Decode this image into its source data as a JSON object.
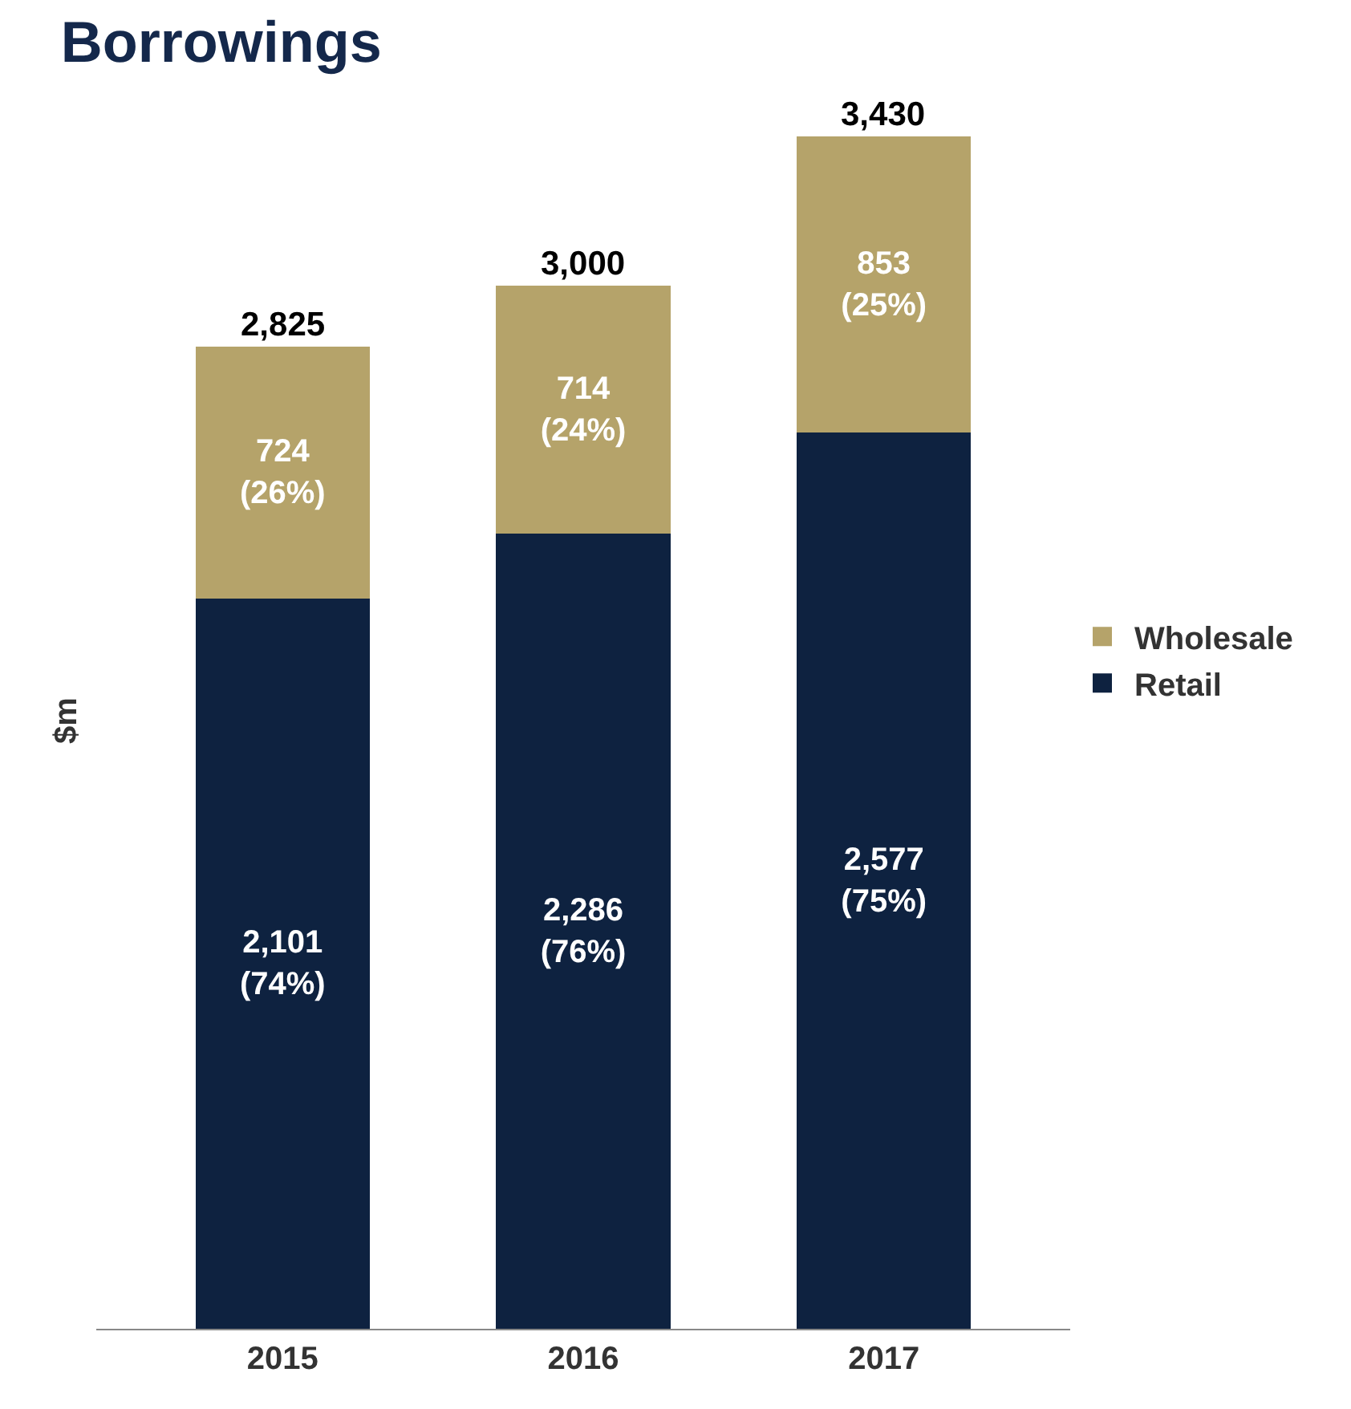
{
  "chart_data": {
    "type": "bar",
    "title": "Borrowings",
    "ylabel": "$m",
    "categories": [
      "2015",
      "2016",
      "2017"
    ],
    "stacked": true,
    "legend": "right",
    "series": [
      {
        "name": "Retail",
        "color": "#0e2240",
        "values": [
          2101,
          2286,
          2577
        ],
        "value_labels": [
          "2,101\n(74%)",
          "2,286\n(76%)",
          "2,577\n(75%)"
        ]
      },
      {
        "name": "Wholesale",
        "color": "#b5a36a",
        "values": [
          724,
          714,
          853
        ],
        "value_labels": [
          "724\n(26%)",
          "714\n(24%)",
          "853\n(25%)"
        ]
      }
    ],
    "totals": [
      "2,825",
      "3,000",
      "3,430"
    ]
  }
}
